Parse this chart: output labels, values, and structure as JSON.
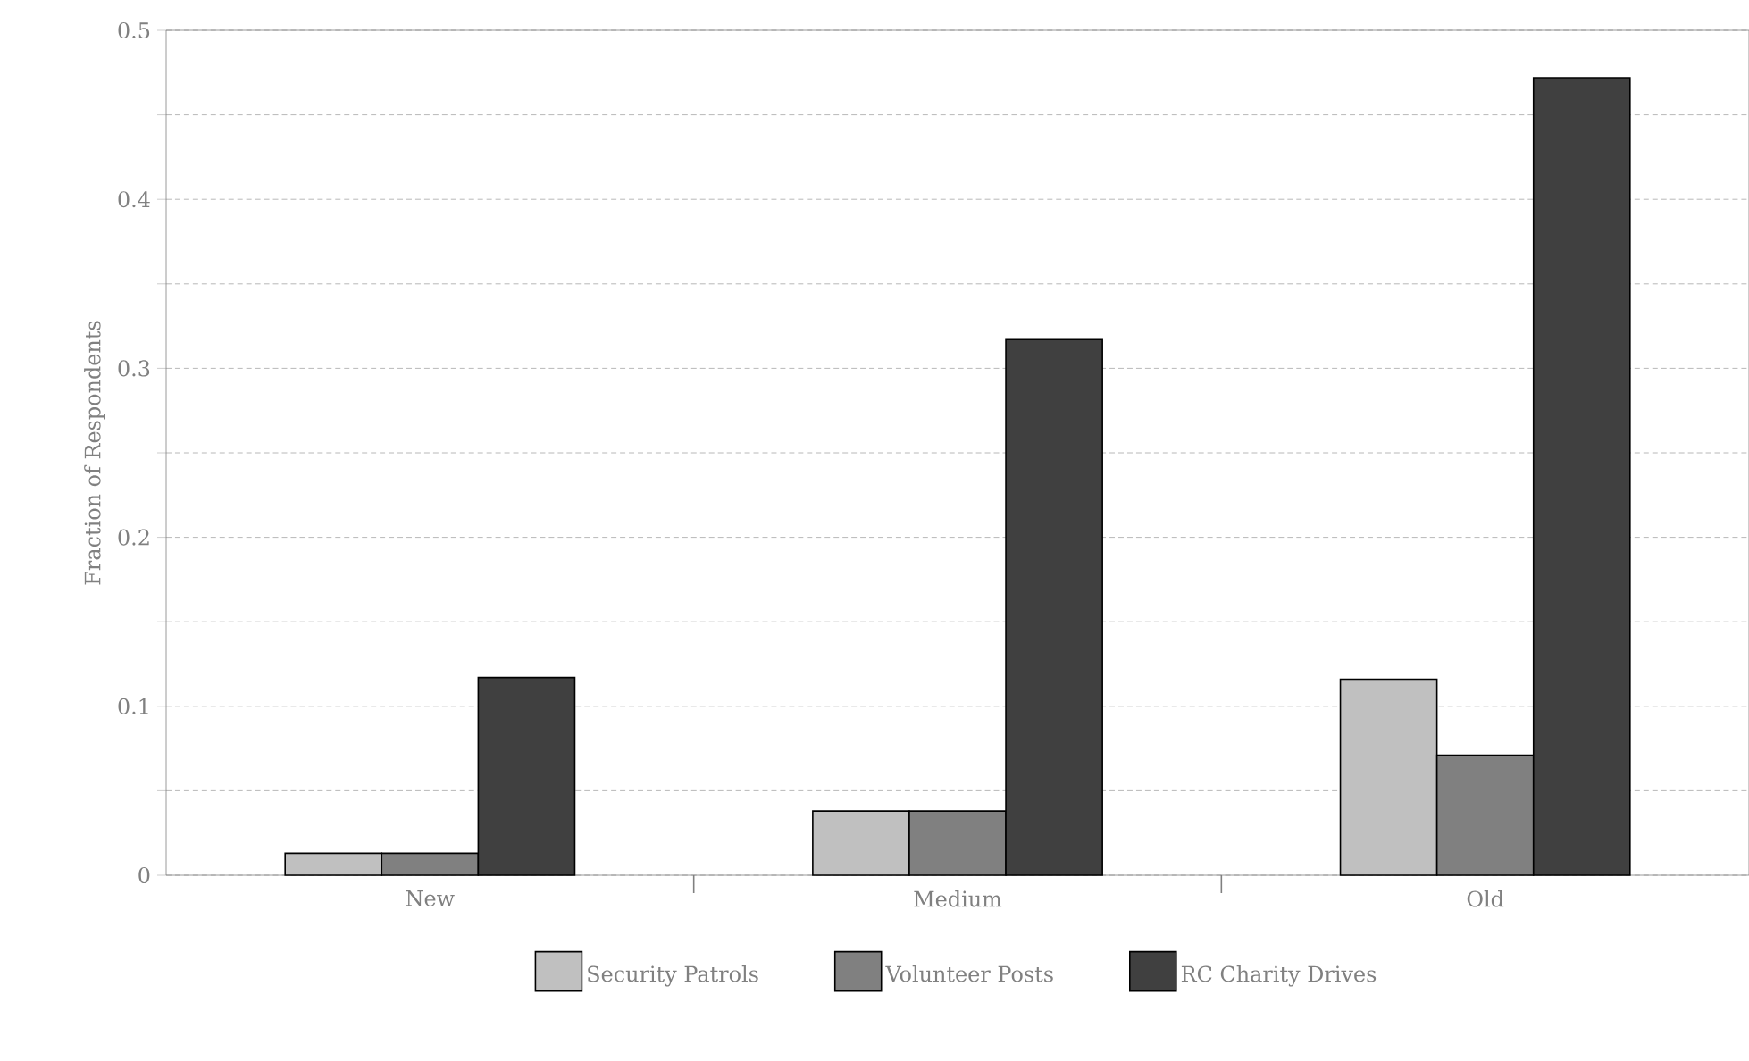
{
  "chart_data": {
    "type": "bar",
    "ylabel": "Fraction of Respondents",
    "categories": [
      "New",
      "Medium",
      "Old"
    ],
    "series": [
      {
        "name": "Security Patrols",
        "color": "#c0c0c0",
        "values": [
          0.013,
          0.038,
          0.116
        ]
      },
      {
        "name": "Volunteer Posts",
        "color": "#808080",
        "values": [
          0.013,
          0.038,
          0.071
        ]
      },
      {
        "name": "RC Charity Drives",
        "color": "#404040",
        "values": [
          0.117,
          0.317,
          0.472
        ]
      }
    ],
    "ylim": [
      0,
      0.5
    ],
    "yticks": [
      0,
      {
        "value": 0.05,
        "label": null
      },
      0.1,
      {
        "value": 0.15,
        "label": null
      },
      0.2,
      {
        "value": 0.25,
        "label": null
      },
      0.3,
      {
        "value": 0.35,
        "label": null
      },
      0.4,
      {
        "value": 0.45,
        "label": null
      },
      0.5
    ],
    "grid": "y",
    "legend": "bottom"
  }
}
